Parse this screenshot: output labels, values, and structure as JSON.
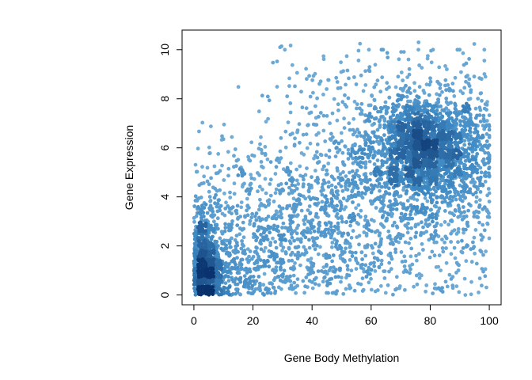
{
  "chart_data": {
    "type": "scatter",
    "style": "smoothed-density",
    "xlabel": "Gene Body Methylation",
    "ylabel": "Gene Expression",
    "xlim": [
      -4,
      104
    ],
    "ylim": [
      -0.4,
      10.8
    ],
    "xticks": [
      0,
      20,
      40,
      60,
      80,
      100
    ],
    "yticks": [
      0,
      2,
      4,
      6,
      8,
      10
    ],
    "x_tick_labels": [
      "0",
      "20",
      "40",
      "60",
      "80",
      "100"
    ],
    "y_tick_labels": [
      "0",
      "2",
      "4",
      "6",
      "8",
      "10"
    ],
    "grid": false,
    "legend": "none",
    "colors": {
      "point_low_density": "#7fb6dc",
      "point_mid_density": "#3f8ac4",
      "point_high_density": "#08306b"
    },
    "density_clusters": [
      {
        "center": [
          77,
          6.0
        ],
        "spread": [
          10,
          1.1
        ],
        "weight": "highest"
      },
      {
        "center": [
          4,
          1.0
        ],
        "spread": [
          3,
          1.2
        ],
        "weight": "high"
      },
      {
        "center": [
          50,
          4.0
        ],
        "spread": [
          30,
          2.5
        ],
        "weight": "diffuse"
      }
    ]
  }
}
